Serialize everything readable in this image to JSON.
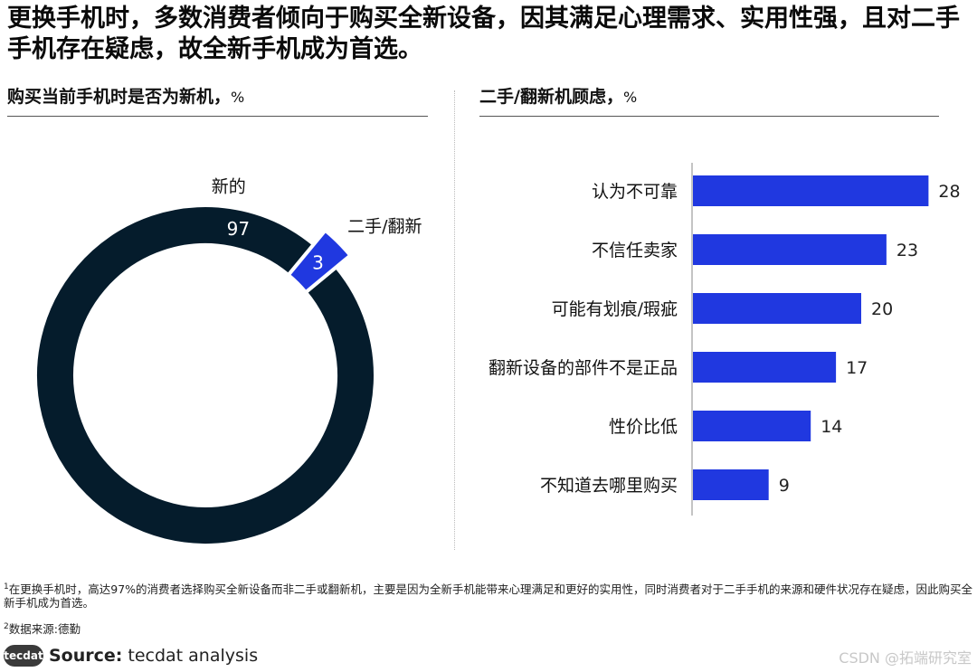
{
  "headline": "更换手机时，多数消费者倾向于购买全新设备，因其满足心理需求、实用性强，且对二手手机存在疑虑，故全新手机成为首选。",
  "left_panel": {
    "title": "购买当前手机时是否为新机，",
    "unit": "%"
  },
  "right_panel": {
    "title": "二手/翻新机顾虑，",
    "unit": "%"
  },
  "colors": {
    "dark": "#051c2c",
    "accent": "#2038e0",
    "rule": "#555555"
  },
  "chart_data": [
    {
      "type": "pie",
      "variant": "donut",
      "title": "购买当前手机时是否为新机，%",
      "slices": [
        {
          "label": "新的",
          "value": 97,
          "color": "#051c2c"
        },
        {
          "label": "二手/翻新",
          "value": 3,
          "color": "#2038e0"
        }
      ]
    },
    {
      "type": "bar",
      "orientation": "horizontal",
      "title": "二手/翻新机顾虑，%",
      "categories": [
        "认为不可靠",
        "不信任卖家",
        "可能有划痕/瑕疵",
        "翻新设备的部件不是正品",
        "性价比低",
        "不知道去哪里购买"
      ],
      "values": [
        28,
        23,
        20,
        17,
        14,
        9
      ],
      "color": "#2038e0"
    }
  ],
  "footnotes": {
    "note1_marker": "1",
    "note1": "在更换手机时，高达97%的消费者选择购买全新设备而非二手或翻新机，主要是因为全新手机能带来心理满足和更好的实用性，同时消费者对于二手手机的来源和硬件状况存在疑虑，因此购买全新手机成为首选。",
    "note2_marker": "2",
    "note2": "数据来源:德勤"
  },
  "source": {
    "logo": "tecdat",
    "label": "Source:",
    "value": "tecdat analysis"
  },
  "watermark": "CSDN @拓端研究室"
}
